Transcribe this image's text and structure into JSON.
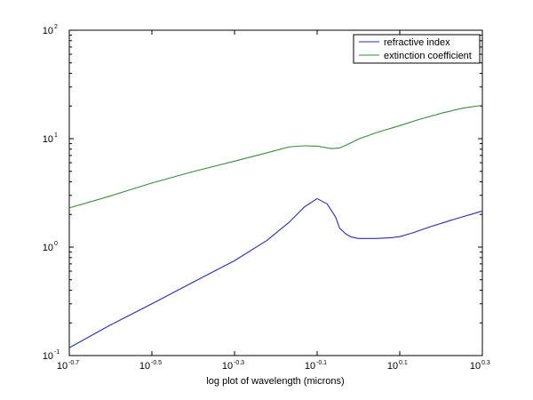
{
  "chart_data": {
    "type": "line",
    "xlabel": "log plot of wavelength (microns)",
    "ylabel": "",
    "x_scale": "log",
    "y_scale": "log",
    "xlim": [
      0.1995,
      1.9953
    ],
    "ylim": [
      0.1,
      100
    ],
    "grid": false,
    "legend_position": "top-right",
    "x_ticks": [
      {
        "base": "10",
        "exp": "-0.7",
        "value": 0.1995
      },
      {
        "base": "10",
        "exp": "-0.5",
        "value": 0.3162
      },
      {
        "base": "10",
        "exp": "-0.3",
        "value": 0.5012
      },
      {
        "base": "10",
        "exp": "-0.1",
        "value": 0.7943
      },
      {
        "base": "10",
        "exp": "0.1",
        "value": 1.2589
      },
      {
        "base": "10",
        "exp": "0.3",
        "value": 1.9953
      }
    ],
    "y_ticks": [
      {
        "base": "10",
        "exp": "-1",
        "value": 0.1
      },
      {
        "base": "10",
        "exp": "0",
        "value": 1
      },
      {
        "base": "10",
        "exp": "1",
        "value": 10
      },
      {
        "base": "10",
        "exp": "2",
        "value": 100
      }
    ],
    "series": [
      {
        "name": "refractive index",
        "color": "#2b2bb3",
        "x": [
          0.1995,
          0.25,
          0.3162,
          0.4,
          0.5012,
          0.6,
          0.68,
          0.74,
          0.7943,
          0.84,
          0.88,
          0.9,
          0.93,
          0.96,
          1.0,
          1.06,
          1.1,
          1.2,
          1.2589,
          1.35,
          1.5,
          1.7,
          1.9953
        ],
        "y": [
          0.118,
          0.19,
          0.3,
          0.48,
          0.75,
          1.15,
          1.7,
          2.35,
          2.8,
          2.5,
          1.9,
          1.5,
          1.33,
          1.24,
          1.2,
          1.2,
          1.2,
          1.22,
          1.25,
          1.35,
          1.55,
          1.8,
          2.15
        ]
      },
      {
        "name": "extinction coefficient",
        "color": "#3a8a3a",
        "x": [
          0.1995,
          0.25,
          0.3162,
          0.4,
          0.5012,
          0.6,
          0.68,
          0.74,
          0.8,
          0.86,
          0.9,
          0.95,
          1.0,
          1.1,
          1.2589,
          1.4,
          1.6,
          1.8,
          1.9953
        ],
        "y": [
          2.3,
          2.95,
          3.9,
          5.0,
          6.2,
          7.4,
          8.4,
          8.6,
          8.5,
          8.1,
          8.2,
          9.0,
          9.9,
          11.3,
          13.2,
          15.0,
          17.3,
          19.2,
          20.3
        ]
      }
    ]
  }
}
